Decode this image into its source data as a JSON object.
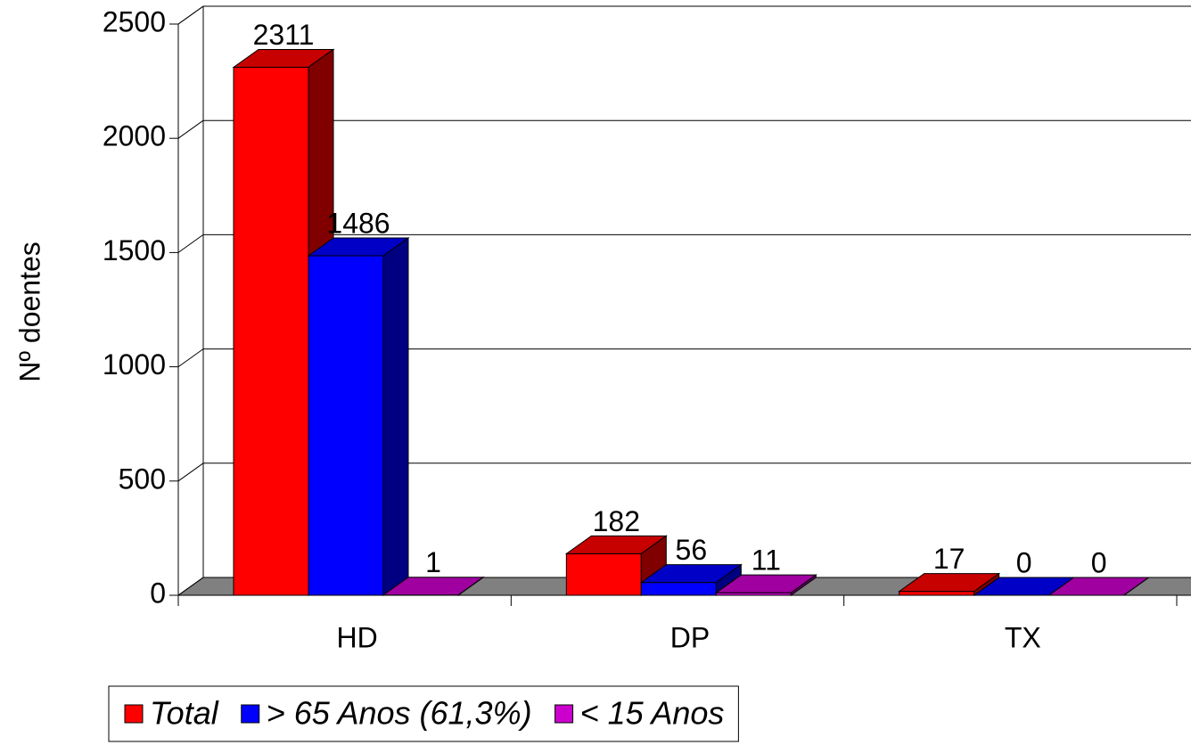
{
  "chart_data": {
    "type": "bar3d",
    "y_label": "Nº doentes",
    "categories": [
      "HD",
      "DP",
      "TX"
    ],
    "series": [
      {
        "name": "Total",
        "color": "#ff0000",
        "values": [
          2311,
          182,
          17
        ]
      },
      {
        "name": "> 65 Anos (61,3%)",
        "color": "#0000ff",
        "values": [
          1486,
          56,
          0
        ]
      },
      {
        "name": "< 15 Anos",
        "color": "#cc00cc",
        "values": [
          1,
          11,
          0
        ]
      }
    ],
    "ylim": [
      0,
      2500
    ],
    "yticks": [
      0,
      500,
      1000,
      1500,
      2000,
      2500
    ],
    "grid": true,
    "legend": "bottom"
  }
}
